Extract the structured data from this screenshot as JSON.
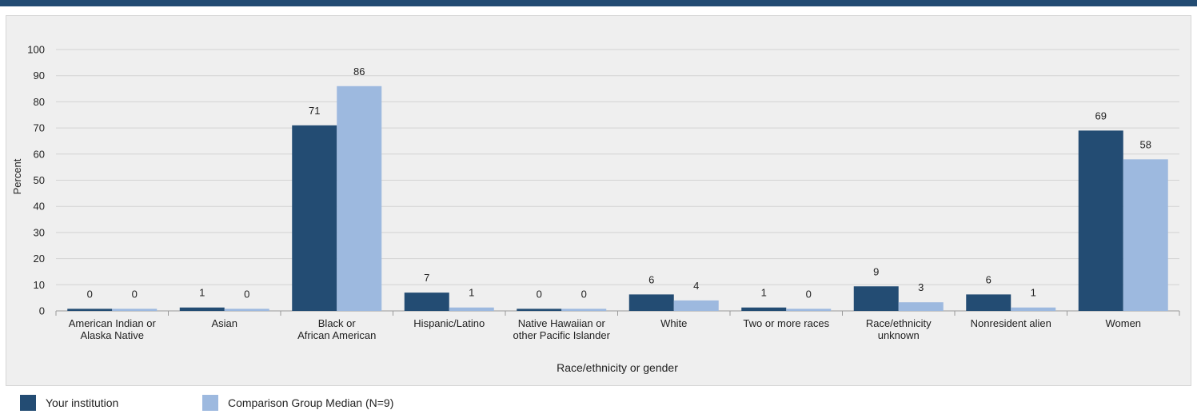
{
  "chart_data": {
    "type": "bar",
    "xlabel": "Race/ethnicity or gender",
    "ylabel": "Percent",
    "ylim": [
      0,
      100
    ],
    "yticks": [
      0,
      10,
      20,
      30,
      40,
      50,
      60,
      70,
      80,
      90,
      100
    ],
    "grid": true,
    "legend_position": "bottom",
    "categories": [
      [
        "American Indian or",
        "Alaska Native"
      ],
      [
        "Asian"
      ],
      [
        "Black or",
        "African American"
      ],
      [
        "Hispanic/Latino"
      ],
      [
        "Native Hawaiian or",
        "other Pacific Islander"
      ],
      [
        "White"
      ],
      [
        "Two or more races"
      ],
      [
        "Race/ethnicity",
        "unknown"
      ],
      [
        "Nonresident alien"
      ],
      [
        "Women"
      ]
    ],
    "series": [
      {
        "name": "Your institution",
        "color": "#234c73",
        "values": [
          0,
          1,
          71,
          7,
          0,
          6,
          1,
          9,
          6,
          69
        ],
        "bar_values": [
          0.8,
          1.3,
          71,
          7,
          0.8,
          6.3,
          1.3,
          9.4,
          6.3,
          69
        ]
      },
      {
        "name": "Comparison Group Median (N=9)",
        "color": "#9db9df",
        "values": [
          0,
          0,
          86,
          1,
          0,
          4,
          0,
          3,
          1,
          58
        ],
        "bar_values": [
          0.8,
          0.8,
          86,
          1.3,
          0.8,
          4,
          0.8,
          3.3,
          1.3,
          58
        ]
      }
    ]
  }
}
